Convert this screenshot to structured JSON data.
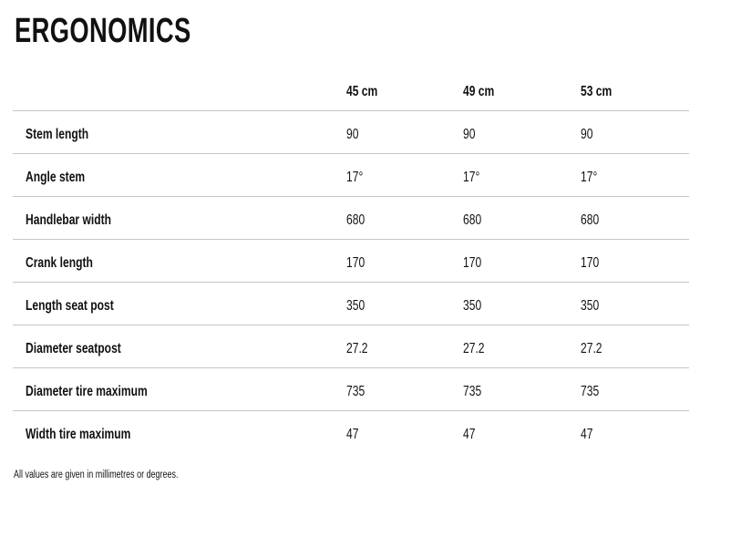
{
  "page": {
    "title": "ERGONOMICS",
    "footnote": "All values are given in millimetres or degrees."
  },
  "table": {
    "columns": [
      "45 cm",
      "49 cm",
      "53 cm"
    ],
    "rows": [
      {
        "label": "Stem length",
        "values": [
          "90",
          "90",
          "90"
        ]
      },
      {
        "label": "Angle stem",
        "values": [
          "17°",
          "17°",
          "17°"
        ]
      },
      {
        "label": "Handlebar width",
        "values": [
          "680",
          "680",
          "680"
        ]
      },
      {
        "label": "Crank length",
        "values": [
          "170",
          "170",
          "170"
        ]
      },
      {
        "label": "Length seat post",
        "values": [
          "350",
          "350",
          "350"
        ]
      },
      {
        "label": "Diameter seatpost",
        "values": [
          "27.2",
          "27.2",
          "27.2"
        ]
      },
      {
        "label": "Diameter tire maximum",
        "values": [
          "735",
          "735",
          "735"
        ]
      },
      {
        "label": "Width tire maximum",
        "values": [
          "47",
          "47",
          "47"
        ]
      }
    ]
  },
  "colors": {
    "text": "#111111",
    "divider": "#c6c6c6",
    "background": "#ffffff"
  }
}
